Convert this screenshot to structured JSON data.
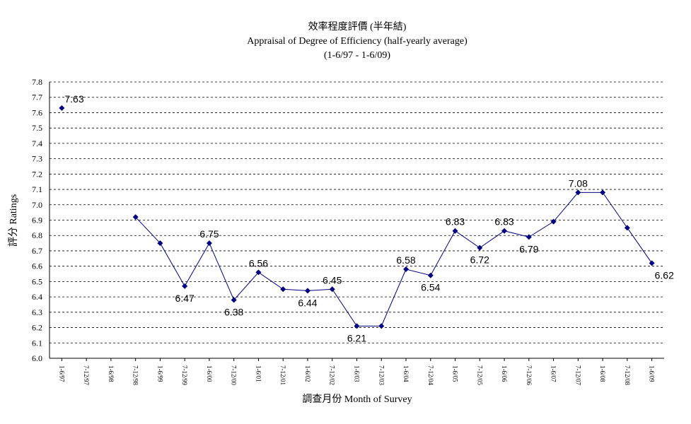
{
  "chart_data": {
    "type": "line",
    "title": "效率程度評價 (半年結)",
    "subtitle": "Appraisal of Degree of Efficiency (half-yearly average)",
    "period": "(1-6/97 - 1-6/09)",
    "x_label": "調查月份 Month of Survey",
    "y_label": "評分 Ratings",
    "categories": [
      "1-6/97",
      "7-12/97",
      "1-6/98",
      "7-12/98",
      "1-6/99",
      "7-12/99",
      "1-6/00",
      "7-12/00",
      "1-6/01",
      "7-12/01",
      "1-6/02",
      "7-12/02",
      "1-6/03",
      "7-12/03",
      "1-6/04",
      "7-12/04",
      "1-6/05",
      "7-12/05",
      "1-6/06",
      "7-12/06",
      "1-6/07",
      "7-12/07",
      "1-6/08",
      "7-12/08",
      "1-6/09"
    ],
    "series": [
      {
        "name": "Ratings",
        "color": "#000080",
        "values": [
          7.63,
          null,
          null,
          6.92,
          6.75,
          6.47,
          6.75,
          6.38,
          6.56,
          6.45,
          6.44,
          6.45,
          6.21,
          6.21,
          6.58,
          6.54,
          6.83,
          6.72,
          6.83,
          6.79,
          6.89,
          7.08,
          7.08,
          6.85,
          6.62
        ],
        "value_labels": [
          "7.63",
          null,
          null,
          null,
          null,
          "6.47",
          "6.75",
          "6.38",
          "6.56",
          null,
          "6.44",
          "6.45",
          "6.21",
          null,
          "6.58",
          "6.54",
          "6.83",
          "6.72",
          "6.83",
          "6.79",
          null,
          "7.08",
          null,
          null,
          "6.62"
        ]
      }
    ],
    "ylim": [
      6.0,
      7.8
    ],
    "yticks": [
      {
        "value": 6,
        "label": "6.0"
      },
      6.1,
      6.2,
      6.3,
      6.4,
      6.5,
      6.6,
      6.7,
      6.8,
      6.9,
      {
        "value": 7,
        "label": "7.0"
      },
      7.1,
      7.2,
      7.3,
      7.4,
      7.5,
      7.6,
      7.7,
      7.8
    ],
    "grid": true
  }
}
